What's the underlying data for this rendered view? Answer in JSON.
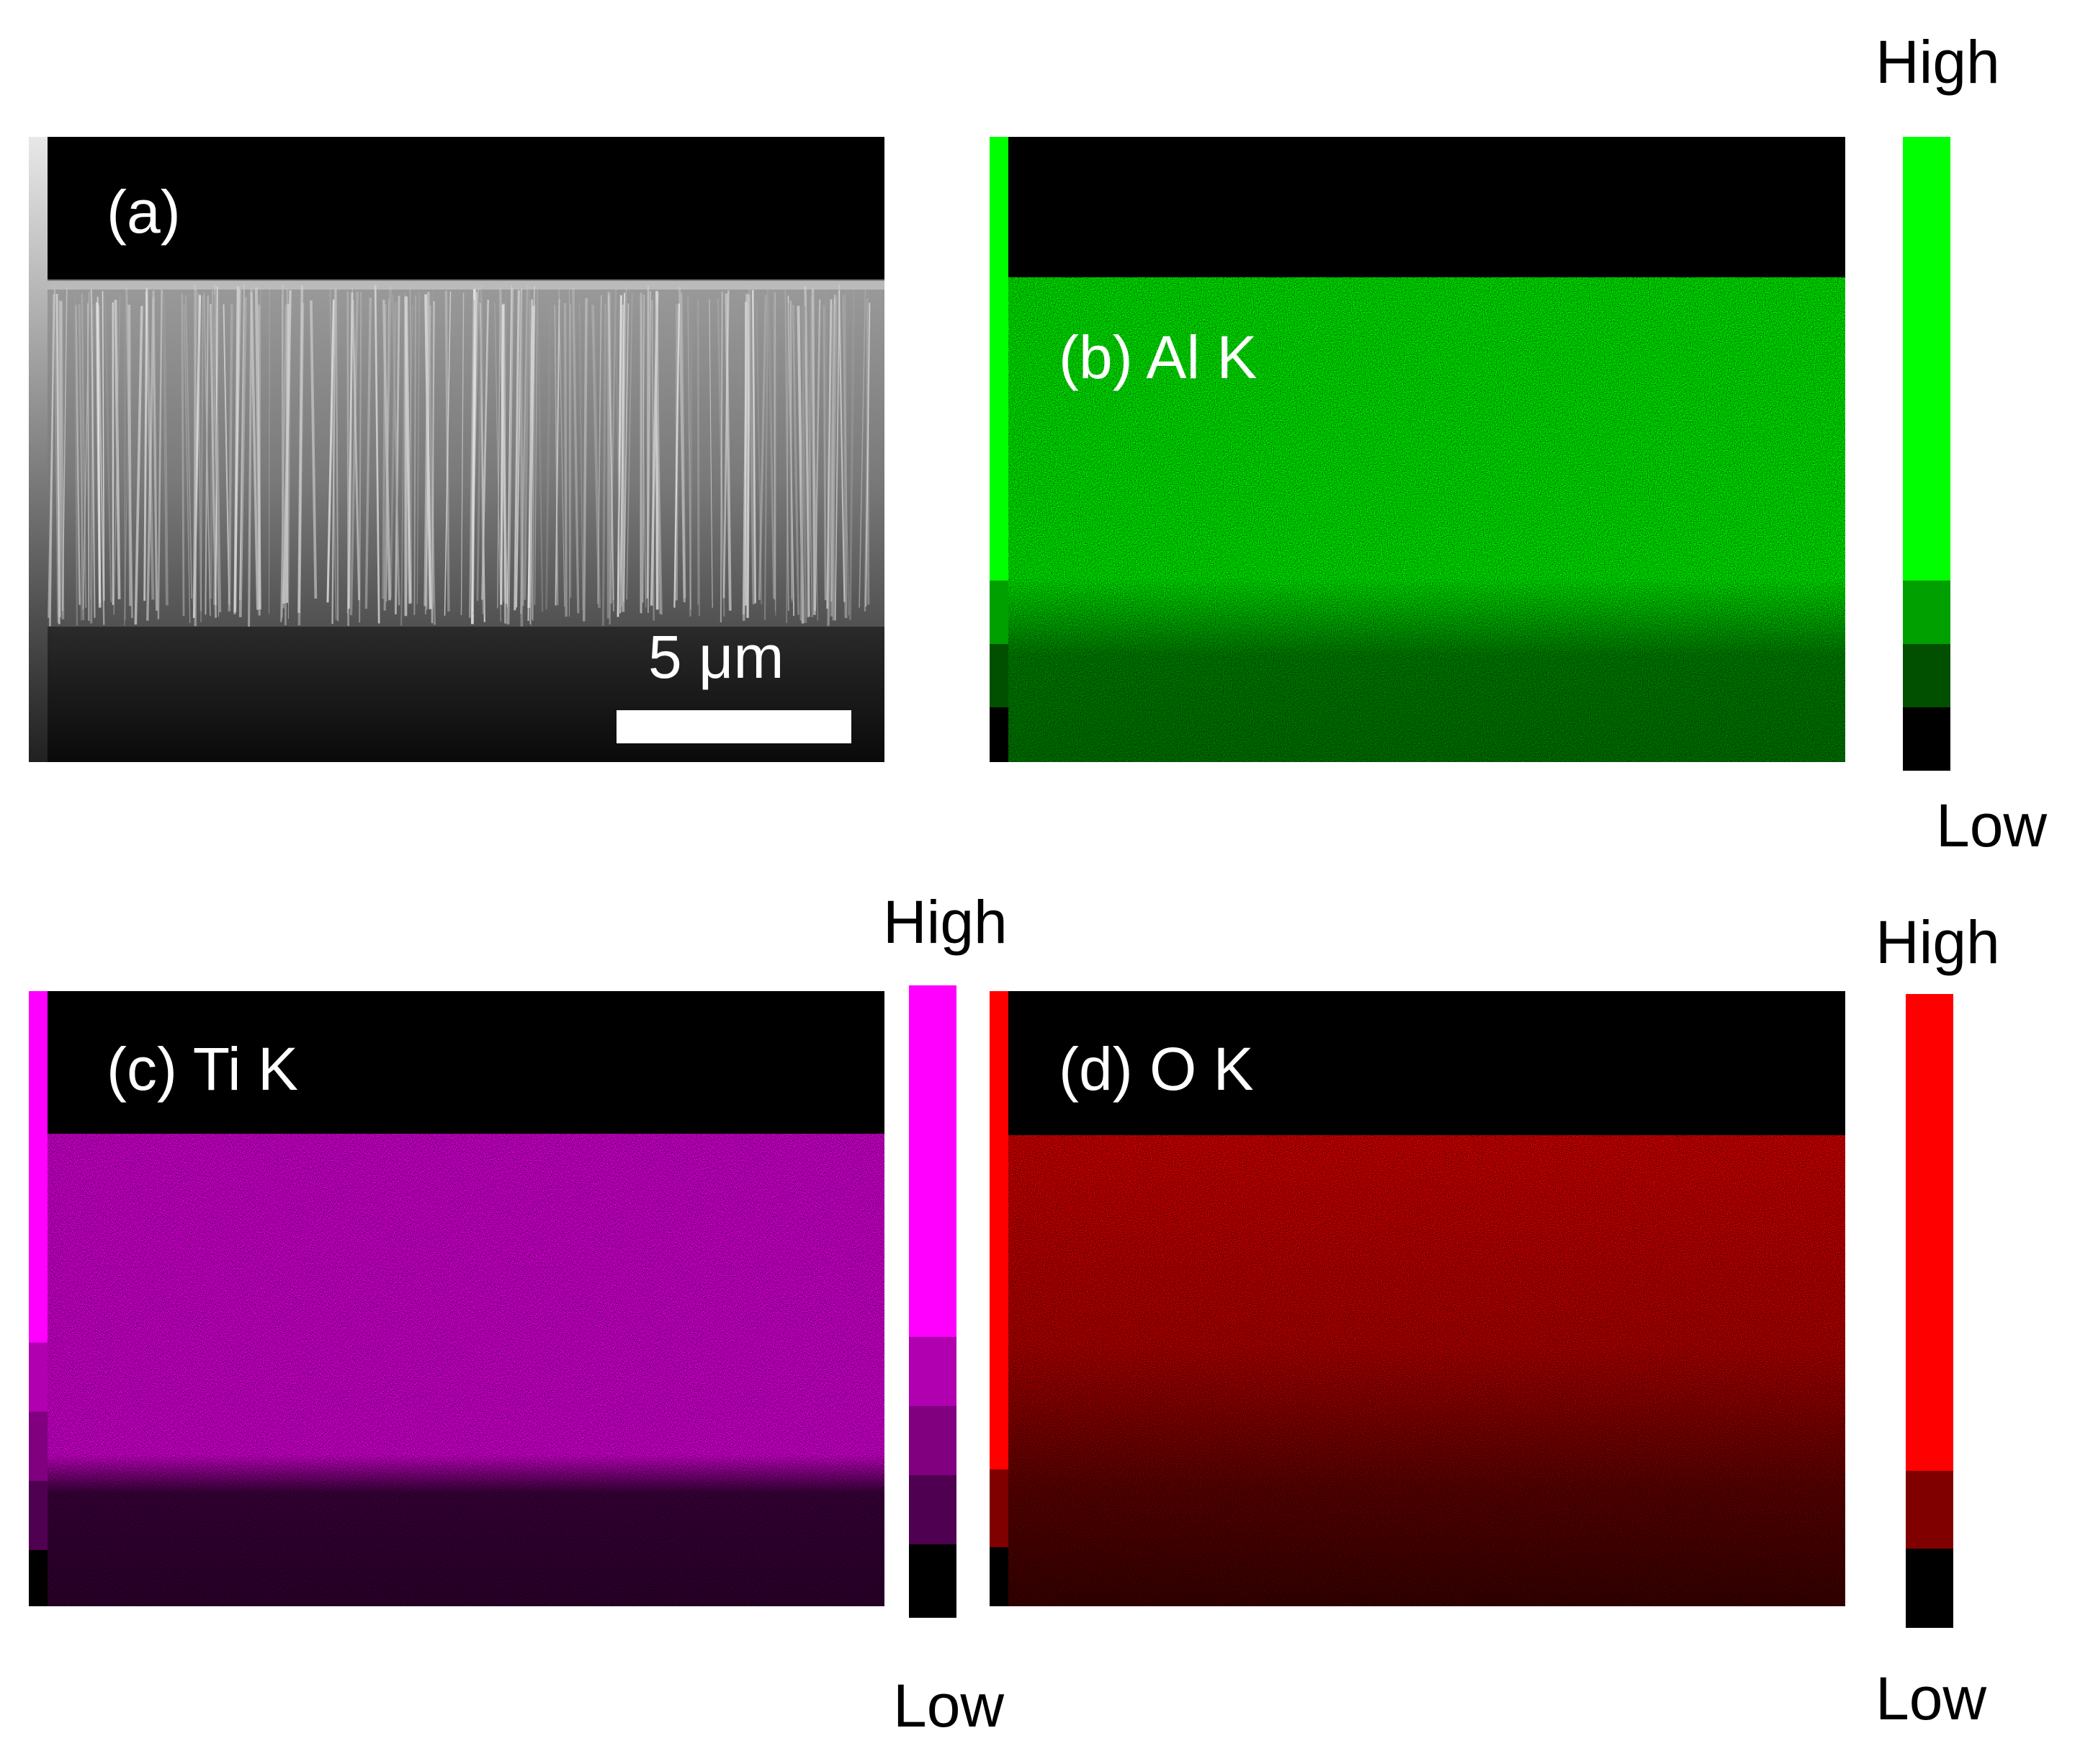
{
  "panels": {
    "a": {
      "label": "(a)",
      "scale_text": "5 μm"
    },
    "b": {
      "label": "(b) Al K",
      "color": "#00ff00"
    },
    "c": {
      "label": "(c) Ti K",
      "color": "#ff00ff"
    },
    "d": {
      "label": "(d) O K",
      "color": "#ff0000"
    }
  },
  "colorbars": {
    "b": {
      "high": "High",
      "low": "Low",
      "colors": [
        "#00ff00",
        "#00a000",
        "#005000",
        "#000000"
      ]
    },
    "c": {
      "high": "High",
      "low": "Low",
      "colors": [
        "#ff00ff",
        "#b000b0",
        "#800080",
        "#500050",
        "#000000"
      ]
    },
    "d": {
      "high": "High",
      "low": "Low",
      "colors": [
        "#ff0000",
        "#800000",
        "#000000"
      ]
    }
  }
}
